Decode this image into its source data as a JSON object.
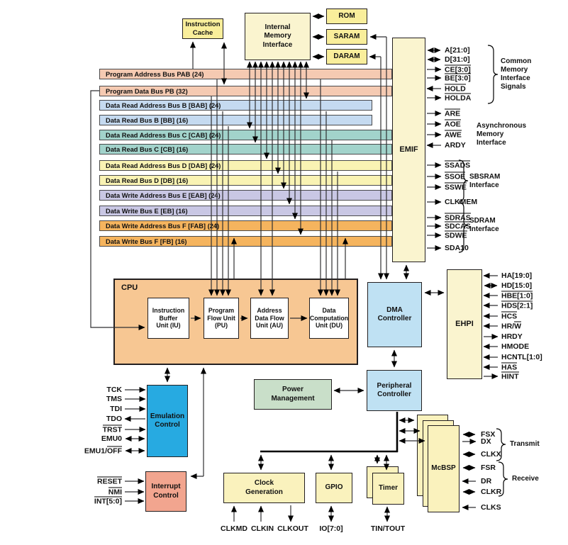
{
  "blocks": {
    "instruction_cache": "Instruction\nCache",
    "internal_memory_interface": "Internal\nMemory\nInterface",
    "rom": "ROM",
    "saram": "SARAM",
    "daram": "DARAM",
    "emif": "EMIF",
    "cpu": "CPU",
    "iu": "Instruction\nBuffer\nUnit (IU)",
    "pu": "Program\nFlow Unit\n(PU)",
    "au": "Address\nData Flow\nUnit (AU)",
    "du": "Data\nComputation\nUnit (DU)",
    "dma": "DMA\nController",
    "ehpi": "EHPI",
    "emulation": "Emulation\nControl",
    "interrupt": "Interrupt\nControl",
    "power": "Power\nManagement",
    "peripheral": "Peripheral\nController",
    "clock": "Clock\nGeneration",
    "gpio": "GPIO",
    "timer": "Timer",
    "mcbsp": "McBSP"
  },
  "buses": [
    {
      "label": "Program Address Bus PAB (24)",
      "color": "#f5cab2"
    },
    {
      "label": "Program Data Bus PB (32)",
      "color": "#f5cab2"
    },
    {
      "label": "Data Read Address Bus B [BAB] (24)",
      "color": "#c5daf0"
    },
    {
      "label": "Data Read Bus B [BB] (16)",
      "color": "#c5daf0"
    },
    {
      "label": "Data Read Address Bus C [CAB] (24)",
      "color": "#a2d3cb"
    },
    {
      "label": "Data Read Bus C [CB] (16)",
      "color": "#a2d3cb"
    },
    {
      "label": "Data Read Address Bus D [DAB] (24)",
      "color": "#f9f3b3"
    },
    {
      "label": "Data Read Bus D [DB] (16)",
      "color": "#f9f3b3"
    },
    {
      "label": "Data Write Address Bus E [EAB] (24)",
      "color": "#c9c7e4"
    },
    {
      "label": "Data Write Bus E [EB] (16)",
      "color": "#c9c7e4"
    },
    {
      "label": "Data Write Address Bus F [FAB] (24)",
      "color": "#f5b45e"
    },
    {
      "label": "Data Write Bus F [FB] (16)",
      "color": "#f5b45e"
    }
  ],
  "emif_signals": {
    "common": {
      "label": "Common\nMemory\nInterface\nSignals",
      "items": [
        {
          "name": "A[21:0]",
          "arrow": "both",
          "bar": "none"
        },
        {
          "name": "D[31:0]",
          "arrow": "both",
          "bar": "none"
        },
        {
          "name": "CE[3:0]",
          "arrow": "from-box",
          "bar": "full"
        },
        {
          "name": "BE[3:0]",
          "arrow": "from-box",
          "bar": "full"
        },
        {
          "name": "HOLD",
          "arrow": "toward-box",
          "bar": "full"
        },
        {
          "name": "HOLDA",
          "arrow": "from-box",
          "bar": "full"
        }
      ]
    },
    "async": {
      "label": "Asynchronous\nMemory\nInterface",
      "items": [
        {
          "name": "ARE",
          "arrow": "from-box",
          "bar": "full"
        },
        {
          "name": "AOE",
          "arrow": "from-box",
          "bar": "full"
        },
        {
          "name": "AWE",
          "arrow": "from-box",
          "bar": "full"
        },
        {
          "name": "ARDY",
          "arrow": "toward-box",
          "bar": "none"
        }
      ]
    },
    "sbsram": {
      "label": "SBSRAM\nInterface",
      "items": [
        {
          "name": "SSADS",
          "arrow": "from-box",
          "bar": "full"
        },
        {
          "name": "SSOE",
          "arrow": "from-box",
          "bar": "full"
        },
        {
          "name": "SSWE",
          "arrow": "from-box",
          "bar": "full"
        }
      ]
    },
    "sdram": {
      "label": "SDRAM\nInterface",
      "items": [
        {
          "name": "CLKMEM",
          "arrow": "from-box",
          "bar": "none"
        },
        {
          "name": "SDRAS",
          "arrow": "from-box",
          "bar": "full"
        },
        {
          "name": "SDCAS",
          "arrow": "from-box",
          "bar": "full"
        },
        {
          "name": "SDWE",
          "arrow": "from-box",
          "bar": "full"
        },
        {
          "name": "SDA10",
          "arrow": "from-box",
          "bar": "none"
        }
      ]
    }
  },
  "ehpi_signals": [
    {
      "name": "HA[19:0]",
      "arrow": "toward-box",
      "bar": "none"
    },
    {
      "name": "HD[15:0]",
      "arrow": "both",
      "bar": "none"
    },
    {
      "name": "HBE[1:0]",
      "arrow": "toward-box",
      "bar": "full"
    },
    {
      "name": "HDS[2:1]",
      "arrow": "toward-box",
      "bar": "full"
    },
    {
      "name": "HCS",
      "arrow": "toward-box",
      "bar": "full"
    },
    {
      "name": "HR/W",
      "arrow": "toward-box",
      "bar": "afterslash"
    },
    {
      "name": "HRDY",
      "arrow": "from-box",
      "bar": "none"
    },
    {
      "name": "HMODE",
      "arrow": "toward-box",
      "bar": "none"
    },
    {
      "name": "HCNTL[1:0]",
      "arrow": "toward-box",
      "bar": "none"
    },
    {
      "name": "HAS",
      "arrow": "toward-box",
      "bar": "full"
    },
    {
      "name": "HINT",
      "arrow": "from-box",
      "bar": "full"
    }
  ],
  "emulation_signals": [
    {
      "name": "TCK",
      "arrow": "toward-box",
      "bar": "none"
    },
    {
      "name": "TMS",
      "arrow": "toward-box",
      "bar": "none"
    },
    {
      "name": "TDI",
      "arrow": "toward-box",
      "bar": "none"
    },
    {
      "name": "TDO",
      "arrow": "from-box",
      "bar": "none"
    },
    {
      "name": "TRST",
      "arrow": "toward-box",
      "bar": "full"
    },
    {
      "name": "EMU0",
      "arrow": "both",
      "bar": "none"
    },
    {
      "name": "EMU1/OFF",
      "arrow": "both",
      "bar": "afterslash"
    }
  ],
  "interrupt_signals": [
    {
      "name": "RESET",
      "arrow": "toward-box",
      "bar": "full"
    },
    {
      "name": "NMI",
      "arrow": "toward-box",
      "bar": "full"
    },
    {
      "name": "INT[5:0]",
      "arrow": "toward-box",
      "bar": "full"
    }
  ],
  "mcbsp_signals": {
    "transmit": {
      "label": "Transmit",
      "items": [
        {
          "name": "FSX",
          "arrow": "both",
          "bar": "none"
        },
        {
          "name": "DX",
          "arrow": "from-box",
          "bar": "none"
        },
        {
          "name": "CLKX",
          "arrow": "both",
          "bar": "none"
        }
      ]
    },
    "receive": {
      "label": "Receive",
      "items": [
        {
          "name": "FSR",
          "arrow": "both",
          "bar": "none"
        },
        {
          "name": "DR",
          "arrow": "toward-box",
          "bar": "none"
        },
        {
          "name": "CLKR",
          "arrow": "both",
          "bar": "none"
        }
      ]
    },
    "clks": {
      "name": "CLKS",
      "arrow": "toward-box",
      "bar": "none"
    }
  },
  "bottom_signals": {
    "clkmd": "CLKMD",
    "clkin": "CLKIN",
    "clkout": "CLKOUT",
    "io": "IO[7:0]",
    "tin_tout": "TIN/TOUT"
  },
  "colors": {
    "block_yellow": "#f9ee9b",
    "block_pale_yellow": "#faf4cf",
    "cpu_orange": "#f7c793",
    "controller_blue": "#bfe1f3",
    "emulation_cyan": "#27aae1",
    "interrupt_salmon": "#f2a58f",
    "power_green": "#c9dfc9"
  }
}
